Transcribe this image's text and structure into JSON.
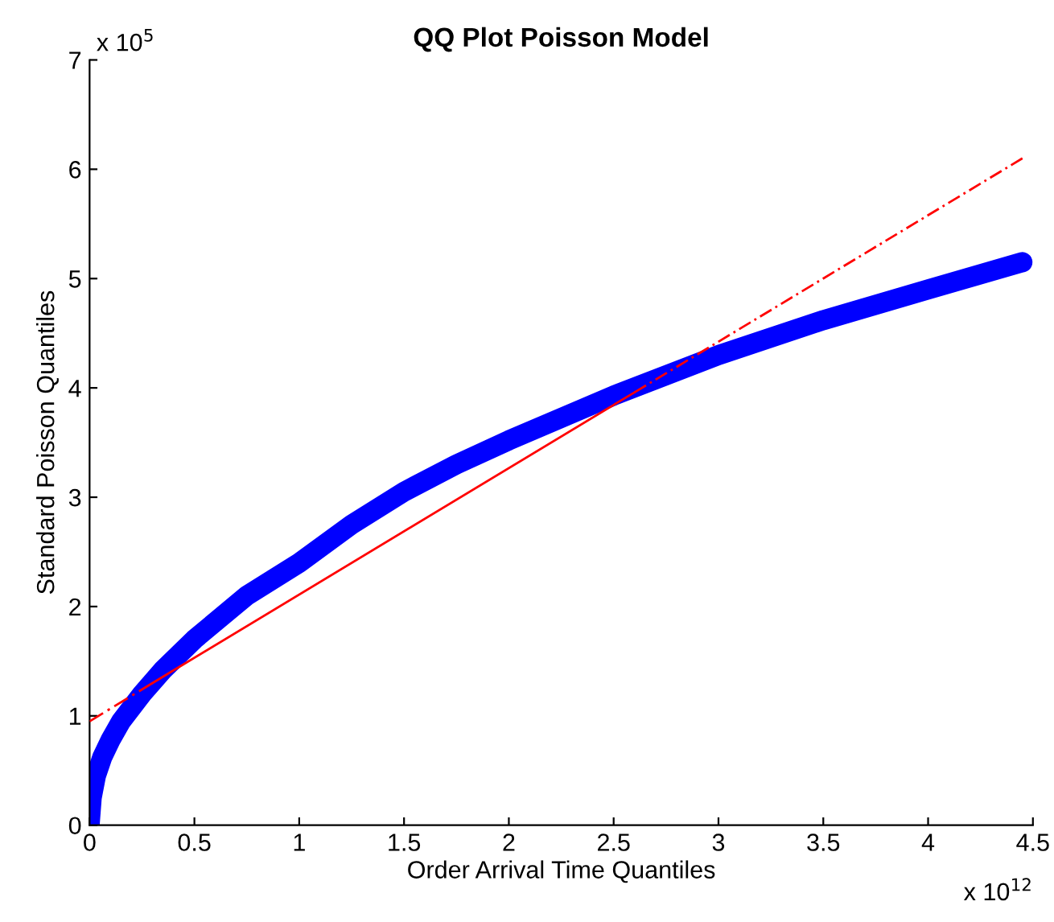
{
  "chart_data": {
    "type": "line",
    "title": "QQ Plot Poisson Model",
    "xlabel": "Order Arrival Time Quantiles",
    "ylabel": "Standard Poisson Quantiles",
    "annotations": [
      "x 10$^{12}$",
      "x 10$^{5}$"
    ],
    "xlim": [
      0,
      4.5
    ],
    "ylim": [
      0,
      7
    ],
    "xticks": [
      0,
      0.5,
      1,
      1.5,
      2,
      2.5,
      3,
      3.5,
      4,
      4.5
    ],
    "yticks": [
      0,
      1,
      2,
      3,
      4,
      5,
      6,
      7
    ],
    "grid": false,
    "legend": false,
    "series": [
      {
        "line_style": "dashed",
        "color": "#ff0000",
        "x": [
          0,
          0.3
        ],
        "values": [
          0.95,
          1.3
        ]
      },
      {
        "line_style": "solid",
        "color": "#ff0000",
        "x": [
          0.3,
          2.6
        ],
        "values": [
          1.3,
          3.96
        ]
      },
      {
        "line_style": "dashed",
        "color": "#ff0000",
        "x": [
          2.6,
          4.45
        ],
        "values": [
          3.96,
          6.1
        ]
      },
      {
        "line_style": "solid",
        "color": "#0000ff",
        "x": [
          0,
          0.01,
          0.03,
          0.06,
          0.1,
          0.15,
          0.25,
          0.35,
          0.5,
          0.75,
          1,
          1.25,
          1.5,
          1.75,
          2,
          2.5,
          3,
          3.5,
          4,
          4.45
        ],
        "values": [
          0,
          0.25,
          0.45,
          0.62,
          0.78,
          0.95,
          1.2,
          1.42,
          1.7,
          2.1,
          2.4,
          2.75,
          3.05,
          3.3,
          3.52,
          3.93,
          4.3,
          4.62,
          4.9,
          5.15
        ]
      }
    ]
  }
}
